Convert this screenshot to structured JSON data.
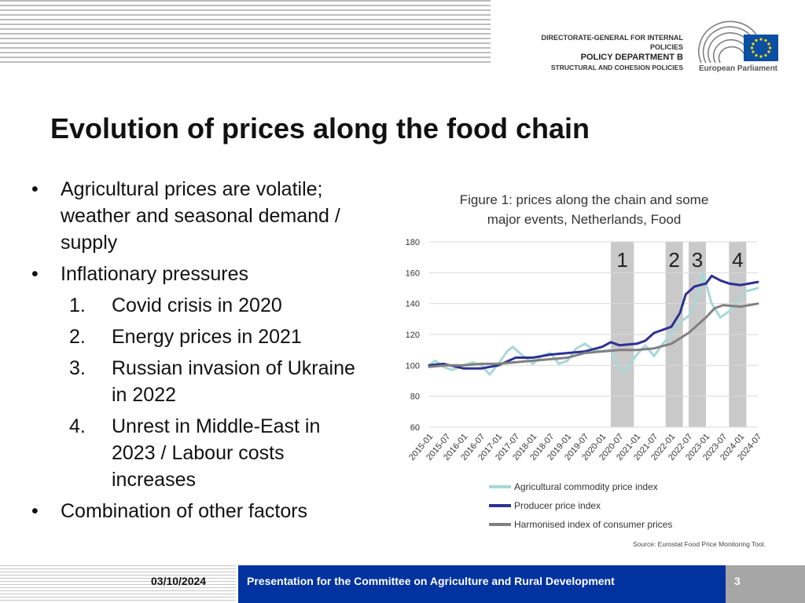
{
  "header": {
    "org_line1": "DIRECTORATE-GENERAL FOR INTERNAL POLICIES",
    "org_line2": "POLICY DEPARTMENT B",
    "org_line3": "STRUCTURAL AND COHESION POLICIES",
    "logo_text": "European Parliament"
  },
  "slide": {
    "title": "Evolution of prices along the food chain",
    "bullets": [
      {
        "bullet": "•",
        "text_lines": [
          "Agricultural prices are volatile;",
          "weather and seasonal demand /",
          "supply"
        ]
      },
      {
        "bullet": "•",
        "text_lines": [
          "Inflationary pressures"
        ]
      }
    ],
    "numbered": [
      {
        "num": "1.",
        "lines": [
          "Covid crisis in 2020"
        ]
      },
      {
        "num": "2.",
        "lines": [
          "Energy prices in 2021"
        ]
      },
      {
        "num": "3.",
        "lines": [
          "Russian invasion of Ukraine",
          "in 2022"
        ]
      },
      {
        "num": "4.",
        "lines": [
          "Unrest in Middle-East in",
          "2023 / Labour costs",
          "increases"
        ]
      }
    ],
    "last_bullet": {
      "bullet": "•",
      "text": "Combination of other factors"
    }
  },
  "chart_data": {
    "type": "line",
    "title": "Figure 1: prices along the chain and some major events, Netherlands, Food",
    "title_lines": [
      "Figure 1: prices along the chain and some",
      "major events, Netherlands, Food"
    ],
    "ylim": [
      60,
      180
    ],
    "yticks": [
      60,
      80,
      100,
      120,
      140,
      160,
      180
    ],
    "xlim": [
      "2015-01",
      "2024-07"
    ],
    "xticks": [
      "2015-01",
      "2015-07",
      "2016-01",
      "2016-07",
      "2017-01",
      "2017-07",
      "2018-01",
      "2018-07",
      "2019-01",
      "2019-07",
      "2020-01",
      "2020-07",
      "2021-01",
      "2021-07",
      "2022-01",
      "2022-07",
      "2023-01",
      "2023-07",
      "2024-01",
      "2024-07"
    ],
    "grid": true,
    "legend_position": "bottom",
    "bands": [
      {
        "label": "1",
        "start": "2020-04",
        "end": "2020-12"
      },
      {
        "label": "2",
        "start": "2021-11",
        "end": "2022-05"
      },
      {
        "label": "3",
        "start": "2022-07",
        "end": "2023-01"
      },
      {
        "label": "4",
        "start": "2023-09",
        "end": "2024-03"
      }
    ],
    "series": [
      {
        "name": "Agricultural commodity price index",
        "color": "#a8d8d8",
        "points": [
          [
            "2015-01",
            100
          ],
          [
            "2015-03",
            103
          ],
          [
            "2015-06",
            99
          ],
          [
            "2015-09",
            97
          ],
          [
            "2016-01",
            100
          ],
          [
            "2016-04",
            102
          ],
          [
            "2016-07",
            100
          ],
          [
            "2016-10",
            94
          ],
          [
            "2017-01",
            101
          ],
          [
            "2017-04",
            109
          ],
          [
            "2017-06",
            112
          ],
          [
            "2017-09",
            107
          ],
          [
            "2018-01",
            101
          ],
          [
            "2018-04",
            106
          ],
          [
            "2018-07",
            108
          ],
          [
            "2018-10",
            101
          ],
          [
            "2019-01",
            103
          ],
          [
            "2019-04",
            111
          ],
          [
            "2019-07",
            114
          ],
          [
            "2019-10",
            110
          ],
          [
            "2020-01",
            109
          ],
          [
            "2020-04",
            110
          ],
          [
            "2020-07",
            97
          ],
          [
            "2020-09",
            96
          ],
          [
            "2021-01",
            107
          ],
          [
            "2021-04",
            113
          ],
          [
            "2021-07",
            106
          ],
          [
            "2021-10",
            114
          ],
          [
            "2022-01",
            120
          ],
          [
            "2022-04",
            128
          ],
          [
            "2022-07",
            132
          ],
          [
            "2022-10",
            143
          ],
          [
            "2022-12",
            160
          ],
          [
            "2023-03",
            140
          ],
          [
            "2023-06",
            131
          ],
          [
            "2023-09",
            135
          ],
          [
            "2024-01",
            143
          ],
          [
            "2024-03",
            148
          ],
          [
            "2024-07",
            150
          ]
        ]
      },
      {
        "name": "Producer price index",
        "color": "#2e3192",
        "points": [
          [
            "2015-01",
            100
          ],
          [
            "2015-06",
            101
          ],
          [
            "2016-01",
            98
          ],
          [
            "2016-07",
            98
          ],
          [
            "2017-01",
            100
          ],
          [
            "2017-07",
            105
          ],
          [
            "2018-01",
            105
          ],
          [
            "2018-07",
            107
          ],
          [
            "2019-01",
            108
          ],
          [
            "2019-07",
            109
          ],
          [
            "2020-01",
            112
          ],
          [
            "2020-04",
            115
          ],
          [
            "2020-07",
            113
          ],
          [
            "2021-01",
            114
          ],
          [
            "2021-04",
            116
          ],
          [
            "2021-07",
            121
          ],
          [
            "2022-01",
            125
          ],
          [
            "2022-04",
            134
          ],
          [
            "2022-06",
            146
          ],
          [
            "2022-09",
            151
          ],
          [
            "2023-01",
            153
          ],
          [
            "2023-03",
            158
          ],
          [
            "2023-06",
            155
          ],
          [
            "2023-09",
            153
          ],
          [
            "2024-01",
            152
          ],
          [
            "2024-04",
            153
          ],
          [
            "2024-07",
            154
          ]
        ]
      },
      {
        "name": "Harmonised index of consumer prices",
        "color": "#808080",
        "points": [
          [
            "2015-01",
            99
          ],
          [
            "2015-07",
            100
          ],
          [
            "2016-01",
            100
          ],
          [
            "2016-07",
            101
          ],
          [
            "2017-01",
            101
          ],
          [
            "2017-07",
            102
          ],
          [
            "2018-01",
            103
          ],
          [
            "2018-07",
            104
          ],
          [
            "2019-01",
            105
          ],
          [
            "2019-07",
            108
          ],
          [
            "2020-01",
            109
          ],
          [
            "2020-07",
            110
          ],
          [
            "2021-01",
            110
          ],
          [
            "2021-07",
            111
          ],
          [
            "2022-01",
            114
          ],
          [
            "2022-07",
            121
          ],
          [
            "2023-01",
            131
          ],
          [
            "2023-04",
            137
          ],
          [
            "2023-07",
            139
          ],
          [
            "2024-01",
            138
          ],
          [
            "2024-07",
            140
          ]
        ]
      }
    ],
    "source": "Source: Eurostat Food Price Monitoring Tool."
  },
  "footer": {
    "date": "03/10/2024",
    "text": "Presentation for the Committee on Agriculture and Rural Development",
    "page": "3"
  }
}
